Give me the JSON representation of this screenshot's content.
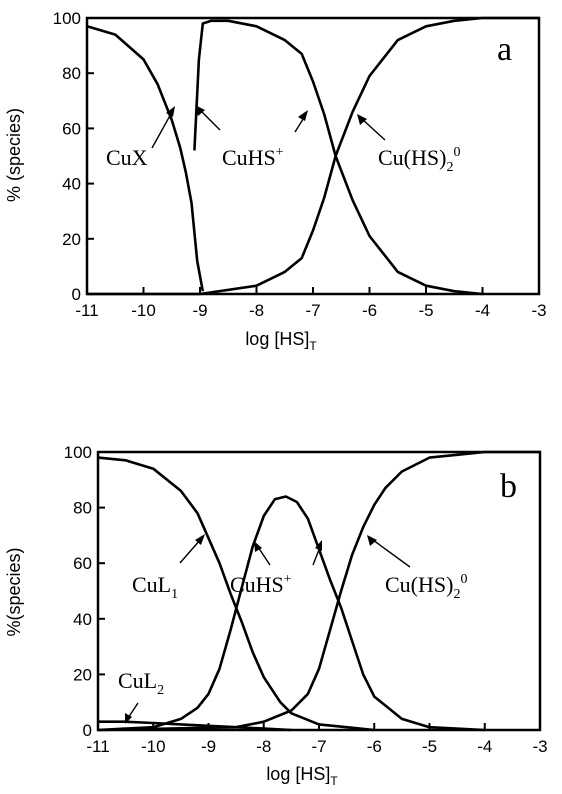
{
  "chart_data": [
    {
      "type": "line",
      "panel_label": "a",
      "xlabel": "log [HS]",
      "xlabel_sub": "T",
      "ylabel": "% (species)",
      "xlim": [
        -11,
        -3
      ],
      "ylim": [
        0,
        100
      ],
      "xticks": [
        -11,
        -10,
        -9,
        -8,
        -7,
        -6,
        -5,
        -4,
        -3
      ],
      "yticks": [
        0,
        20,
        40,
        60,
        80,
        100
      ],
      "grid": false,
      "series": [
        {
          "name": "CuX",
          "x": [
            -11,
            -10.5,
            -10,
            -9.75,
            -9.5,
            -9.35,
            -9.25,
            -9.15,
            -9.05,
            -8.95
          ],
          "y": [
            97,
            94,
            85,
            76,
            63,
            53,
            44,
            33,
            12,
            1
          ]
        },
        {
          "name": "CuHS+",
          "x": [
            -9.1,
            -9.02,
            -8.95,
            -8.8,
            -8.5,
            -8,
            -7.5,
            -7.2,
            -7,
            -6.8,
            -6.6,
            -6.3,
            -6,
            -5.5,
            -5,
            -4.5,
            -4
          ],
          "y": [
            52,
            85,
            98,
            99,
            99,
            97,
            92,
            87,
            77,
            65,
            50,
            34,
            21,
            8,
            3,
            1,
            0
          ]
        },
        {
          "name": "Cu(HS)2 0",
          "x": [
            -11,
            -9,
            -8,
            -7.5,
            -7.2,
            -7,
            -6.8,
            -6.6,
            -6.3,
            -6,
            -5.5,
            -5,
            -4.5,
            -4,
            -3.5,
            -3
          ],
          "y": [
            0,
            0,
            3,
            8,
            13,
            23,
            35,
            50,
            66,
            79,
            92,
            97,
            99,
            100,
            100,
            100
          ]
        }
      ],
      "annotations": [
        {
          "text": "CuX"
        },
        {
          "text": "CuHS",
          "sup": "+"
        },
        {
          "text": "Cu(HS)",
          "sub": "2",
          "sup": "0"
        }
      ]
    },
    {
      "type": "line",
      "panel_label": "b",
      "xlabel": "log [HS]",
      "xlabel_sub": "T",
      "ylabel": "%(species)",
      "xlim": [
        -11,
        -3
      ],
      "ylim": [
        0,
        100
      ],
      "xticks": [
        -11,
        -10,
        -9,
        -8,
        -7,
        -6,
        -5,
        -4,
        -3
      ],
      "yticks": [
        0,
        20,
        40,
        60,
        80,
        100
      ],
      "grid": false,
      "series": [
        {
          "name": "CuL1",
          "x": [
            -11,
            -10.5,
            -10,
            -9.5,
            -9.2,
            -9,
            -8.8,
            -8.6,
            -8.4,
            -8.2,
            -8,
            -7.7,
            -7.5,
            -7,
            -6.5,
            -6
          ],
          "y": [
            98,
            97,
            94,
            86,
            78,
            69,
            60,
            49,
            39,
            28,
            19,
            10,
            6,
            2,
            1,
            0
          ]
        },
        {
          "name": "CuHS+",
          "x": [
            -11,
            -10,
            -9.5,
            -9.2,
            -9,
            -8.8,
            -8.6,
            -8.4,
            -8.2,
            -8,
            -7.8,
            -7.6,
            -7.4,
            -7.2,
            -7,
            -6.8,
            -6.6,
            -6.4,
            -6.2,
            -6,
            -5.5,
            -5,
            -4
          ],
          "y": [
            0,
            1,
            4,
            8,
            13,
            22,
            36,
            51,
            66,
            77,
            83,
            84,
            82,
            76,
            65,
            54,
            44,
            32,
            20,
            12,
            4,
            1,
            0
          ]
        },
        {
          "name": "Cu(HS)2 0",
          "x": [
            -11,
            -8.5,
            -8,
            -7.5,
            -7.2,
            -7,
            -6.8,
            -6.6,
            -6.4,
            -6.2,
            -6,
            -5.8,
            -5.5,
            -5,
            -4.5,
            -4,
            -3.5,
            -3
          ],
          "y": [
            0,
            1,
            3,
            7,
            13,
            22,
            36,
            50,
            63,
            73,
            81,
            87,
            93,
            98,
            99,
            100,
            100,
            100
          ]
        },
        {
          "name": "CuL2",
          "x": [
            -11,
            -10.5,
            -10,
            -9.5,
            -9,
            -8.5,
            -8,
            -7.5
          ],
          "y": [
            3,
            3,
            2.5,
            2,
            1.5,
            1,
            0.5,
            0
          ]
        }
      ],
      "annotations": [
        {
          "text": "CuL",
          "sub": "1"
        },
        {
          "text": "CuHS",
          "sup": "+"
        },
        {
          "text": "Cu(HS)",
          "sub": "2",
          "sup": "0"
        },
        {
          "text": "CuL",
          "sub": "2"
        }
      ]
    }
  ]
}
